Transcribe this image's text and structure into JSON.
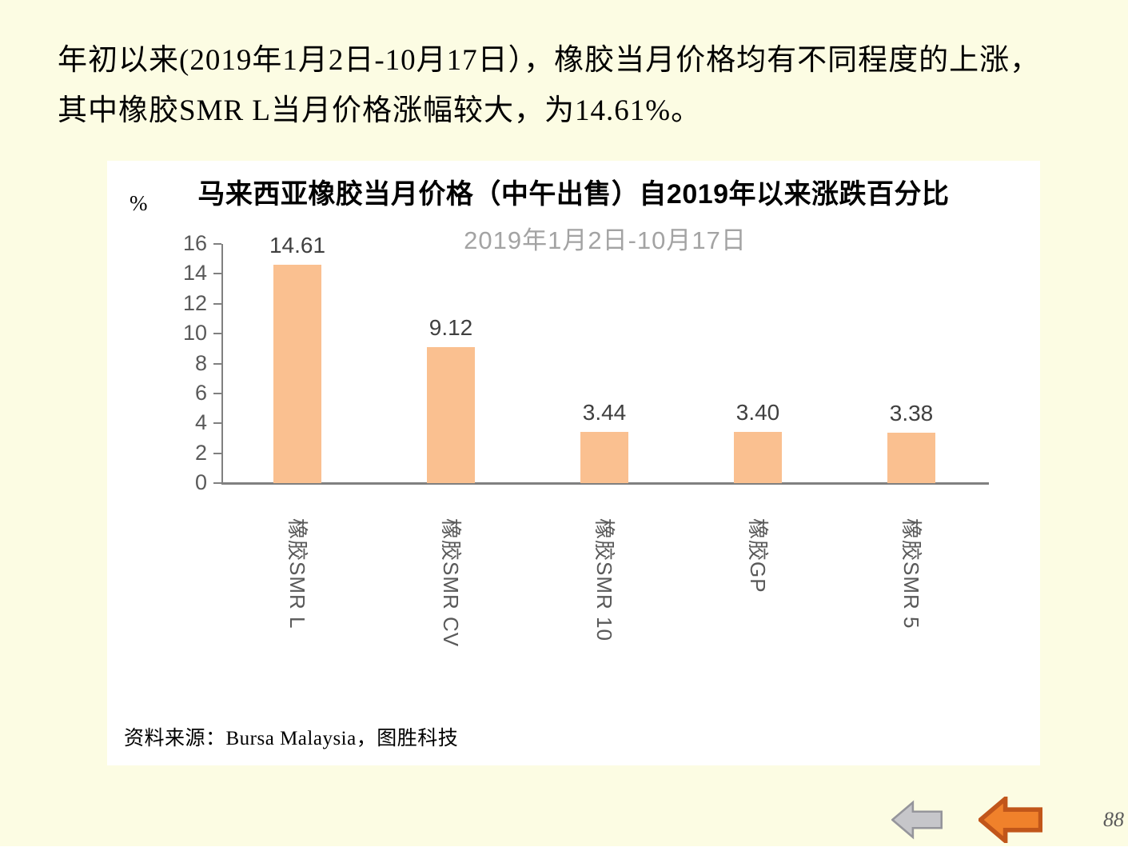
{
  "slide": {
    "background": "#FCFCE3",
    "page_number": "88"
  },
  "intro": {
    "line1": "年初以来(2019年1月2日-10月17日），橡胶当月价格均有不同程度的上涨，",
    "line2": "其中橡胶SMR L当月价格涨幅较大，为14.61%。"
  },
  "chart_data": {
    "type": "bar",
    "title": "马来西亚橡胶当月价格（中午出售）自2019年以来涨跌百分比",
    "subtitle": "2019年1月2日-10月17日",
    "ylabel": "%",
    "categories": [
      "橡胶SMR L",
      "橡胶SMR CV",
      "橡胶SMR 10",
      "橡胶GP",
      "橡胶SMR 5"
    ],
    "values": [
      14.61,
      9.12,
      3.44,
      3.4,
      3.38
    ],
    "value_labels": [
      "14.61",
      "9.12",
      "3.44",
      "3.40",
      "3.38"
    ],
    "ylim": [
      0,
      16
    ],
    "yticks": [
      0,
      2,
      4,
      6,
      8,
      10,
      12,
      14,
      16
    ],
    "grid": false,
    "legend": "none",
    "bar_color": "#FAC090",
    "axis_color": "#808080",
    "value_label_color": "#404040",
    "tick_label_color": "#595959",
    "subtitle_color": "#A3A3A3",
    "source": "资料来源：Bursa Malaysia，图胜科技"
  },
  "nav": {
    "prev_arrow_gray": {
      "icon": "left-block-arrow",
      "fill": "#C6C6CA",
      "stroke": "#95959B"
    },
    "prev_arrow_orange": {
      "icon": "left-block-arrow",
      "fill": "#F0812B",
      "stroke": "#C1561A"
    }
  }
}
